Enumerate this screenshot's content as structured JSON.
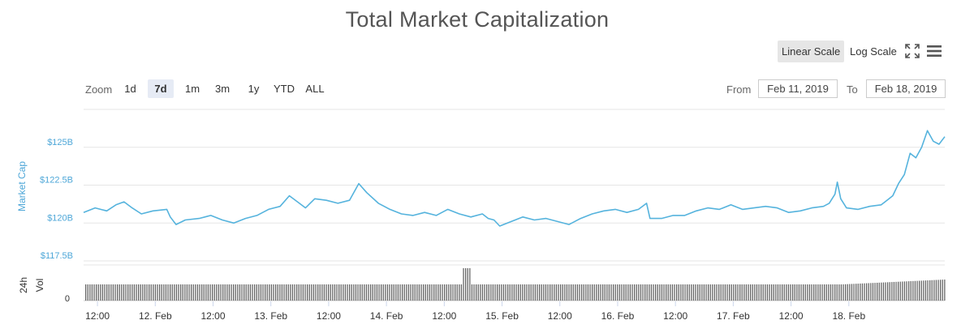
{
  "toolbar": {
    "linear_label": "Linear Scale",
    "log_label": "Log Scale",
    "fullscreen_icon": "fullscreen-icon",
    "menu_icon": "hamburger-menu-icon"
  },
  "range_selector": {
    "zoom_label": "Zoom",
    "buttons": [
      "1d",
      "7d",
      "1m",
      "3m",
      "1y",
      "YTD",
      "ALL"
    ],
    "selected": "7d",
    "from_label": "From",
    "from_value": "Feb 11, 2019",
    "to_label": "To",
    "to_value": "Feb 18, 2019"
  },
  "colors": {
    "line": "#55b3dd",
    "axis_text": "#4ea7d8",
    "grid": "#e6e6e6",
    "volume": "#666666"
  },
  "chart_data": {
    "type": "line",
    "title": "Total Market Capitalization",
    "ylabel": "Market Cap",
    "volume_label": "24h Vol",
    "volume_tick": "0",
    "y_ticks": [
      {
        "value": 125,
        "label": "$125B"
      },
      {
        "value": 122.5,
        "label": "$122.5B"
      },
      {
        "value": 120,
        "label": "$120B"
      },
      {
        "value": 117.5,
        "label": "$117.5B"
      }
    ],
    "ylim": [
      117.5,
      127.5
    ],
    "x_ticks": [
      "12:00",
      "12. Feb",
      "12:00",
      "13. Feb",
      "12:00",
      "14. Feb",
      "12:00",
      "15. Feb",
      "12:00",
      "16. Feb",
      "12:00",
      "17. Feb",
      "12:00",
      "18. Feb"
    ],
    "x_range_days": [
      0,
      7.45
    ],
    "series": [
      {
        "values": [
          [
            0.0,
            120.7
          ],
          [
            0.1,
            121.0
          ],
          [
            0.2,
            120.8
          ],
          [
            0.28,
            121.2
          ],
          [
            0.35,
            121.4
          ],
          [
            0.42,
            121.0
          ],
          [
            0.5,
            120.6
          ],
          [
            0.6,
            120.8
          ],
          [
            0.72,
            120.9
          ],
          [
            0.75,
            120.4
          ],
          [
            0.8,
            119.9
          ],
          [
            0.88,
            120.2
          ],
          [
            1.0,
            120.3
          ],
          [
            1.1,
            120.5
          ],
          [
            1.2,
            120.2
          ],
          [
            1.3,
            120.0
          ],
          [
            1.4,
            120.3
          ],
          [
            1.5,
            120.5
          ],
          [
            1.6,
            120.9
          ],
          [
            1.7,
            121.1
          ],
          [
            1.78,
            121.8
          ],
          [
            1.85,
            121.4
          ],
          [
            1.92,
            121.0
          ],
          [
            2.0,
            121.6
          ],
          [
            2.1,
            121.5
          ],
          [
            2.2,
            121.3
          ],
          [
            2.3,
            121.5
          ],
          [
            2.38,
            122.6
          ],
          [
            2.45,
            122.0
          ],
          [
            2.55,
            121.3
          ],
          [
            2.65,
            120.9
          ],
          [
            2.75,
            120.6
          ],
          [
            2.85,
            120.5
          ],
          [
            2.95,
            120.7
          ],
          [
            3.05,
            120.5
          ],
          [
            3.15,
            120.9
          ],
          [
            3.25,
            120.6
          ],
          [
            3.35,
            120.4
          ],
          [
            3.45,
            120.6
          ],
          [
            3.5,
            120.3
          ],
          [
            3.55,
            120.2
          ],
          [
            3.6,
            119.8
          ],
          [
            3.7,
            120.1
          ],
          [
            3.8,
            120.4
          ],
          [
            3.9,
            120.2
          ],
          [
            4.0,
            120.3
          ],
          [
            4.1,
            120.1
          ],
          [
            4.2,
            119.9
          ],
          [
            4.3,
            120.3
          ],
          [
            4.4,
            120.6
          ],
          [
            4.5,
            120.8
          ],
          [
            4.6,
            120.9
          ],
          [
            4.7,
            120.7
          ],
          [
            4.8,
            120.9
          ],
          [
            4.87,
            121.3
          ],
          [
            4.9,
            120.3
          ],
          [
            5.0,
            120.3
          ],
          [
            5.1,
            120.5
          ],
          [
            5.2,
            120.5
          ],
          [
            5.3,
            120.8
          ],
          [
            5.4,
            121.0
          ],
          [
            5.5,
            120.9
          ],
          [
            5.6,
            121.2
          ],
          [
            5.7,
            120.9
          ],
          [
            5.8,
            121.0
          ],
          [
            5.9,
            121.1
          ],
          [
            6.0,
            121.0
          ],
          [
            6.1,
            120.7
          ],
          [
            6.2,
            120.8
          ],
          [
            6.3,
            121.0
          ],
          [
            6.4,
            121.1
          ],
          [
            6.45,
            121.3
          ],
          [
            6.5,
            121.9
          ],
          [
            6.52,
            122.7
          ],
          [
            6.55,
            121.6
          ],
          [
            6.6,
            121.0
          ],
          [
            6.7,
            120.9
          ],
          [
            6.8,
            121.1
          ],
          [
            6.9,
            121.2
          ],
          [
            6.95,
            121.5
          ],
          [
            7.0,
            121.8
          ],
          [
            7.05,
            122.6
          ],
          [
            7.1,
            123.2
          ],
          [
            7.15,
            124.6
          ],
          [
            7.2,
            124.3
          ],
          [
            7.25,
            125.0
          ],
          [
            7.3,
            126.1
          ],
          [
            7.35,
            125.4
          ],
          [
            7.4,
            125.2
          ],
          [
            7.45,
            125.7
          ]
        ]
      }
    ]
  }
}
